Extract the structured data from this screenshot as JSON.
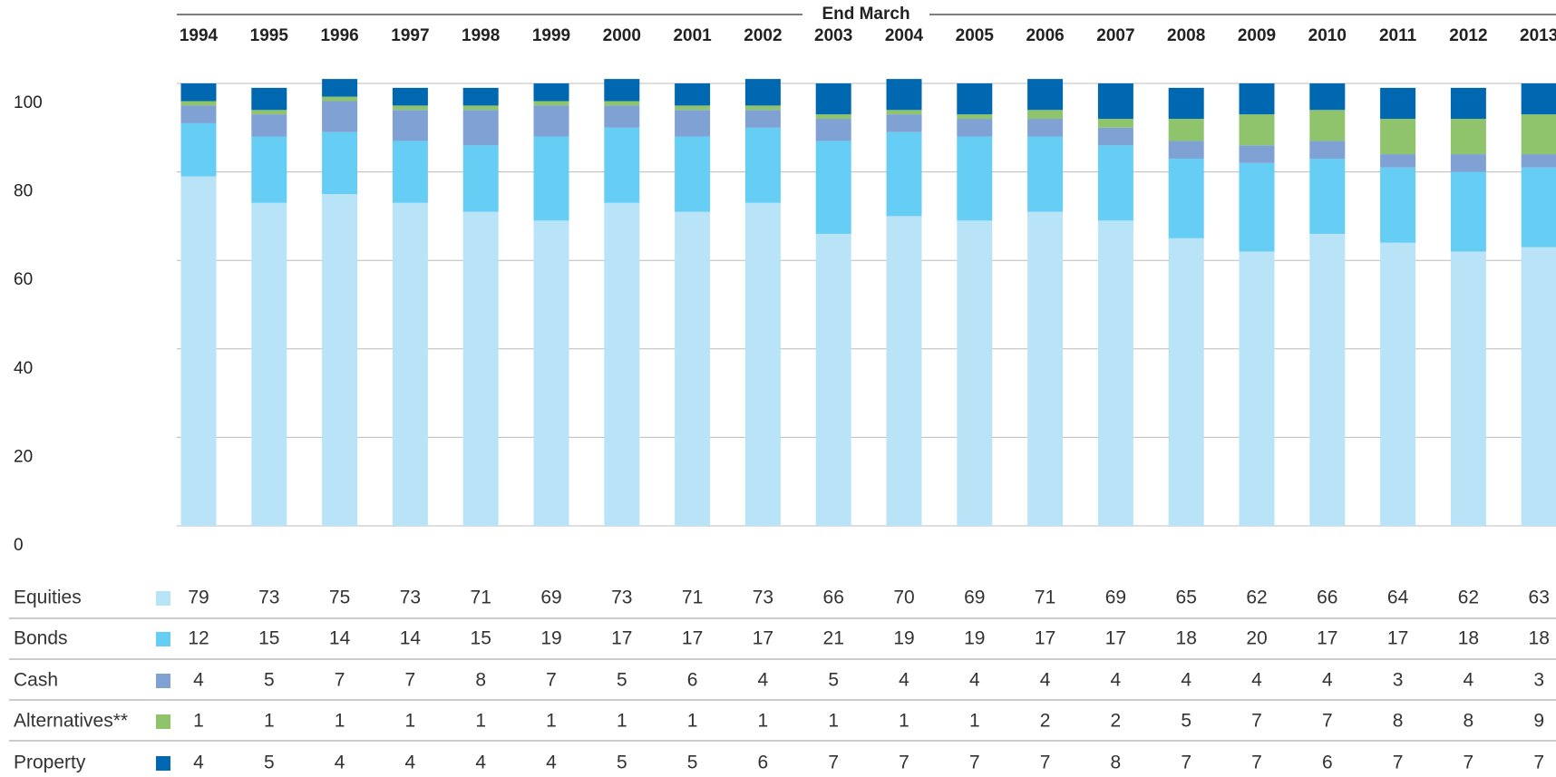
{
  "chart_data": {
    "type": "bar",
    "stacked": true,
    "xlabel": "End March",
    "categories": [
      "1994",
      "1995",
      "1996",
      "1997",
      "1998",
      "1999",
      "2000",
      "2001",
      "2002",
      "2003",
      "2004",
      "2005",
      "2006",
      "2007",
      "2008",
      "2009",
      "2010",
      "2011",
      "2012",
      "2013"
    ],
    "series": [
      {
        "name": "Equities",
        "color": "#b9e3f7",
        "values": [
          79,
          73,
          75,
          73,
          71,
          69,
          73,
          71,
          73,
          66,
          70,
          69,
          71,
          69,
          65,
          62,
          66,
          64,
          62,
          63
        ]
      },
      {
        "name": "Bonds",
        "color": "#66cdf4",
        "values": [
          12,
          15,
          14,
          14,
          15,
          19,
          17,
          17,
          17,
          21,
          19,
          19,
          17,
          17,
          18,
          20,
          17,
          17,
          18,
          18
        ]
      },
      {
        "name": "Cash",
        "color": "#7fa1d4",
        "values": [
          4,
          5,
          7,
          7,
          8,
          7,
          5,
          6,
          4,
          5,
          4,
          4,
          4,
          4,
          4,
          4,
          4,
          3,
          4,
          3
        ]
      },
      {
        "name": "Alternatives**",
        "color": "#8fc46d",
        "values": [
          1,
          1,
          1,
          1,
          1,
          1,
          1,
          1,
          1,
          1,
          1,
          1,
          2,
          2,
          5,
          7,
          7,
          8,
          8,
          9
        ]
      },
      {
        "name": "Property",
        "color": "#0067b1",
        "values": [
          4,
          5,
          4,
          4,
          4,
          4,
          5,
          5,
          6,
          7,
          7,
          7,
          7,
          8,
          7,
          7,
          6,
          7,
          7,
          7
        ]
      }
    ],
    "ylim": [
      0,
      100
    ],
    "yticks": [
      0,
      20,
      40,
      60,
      80,
      100
    ],
    "grid": true
  }
}
